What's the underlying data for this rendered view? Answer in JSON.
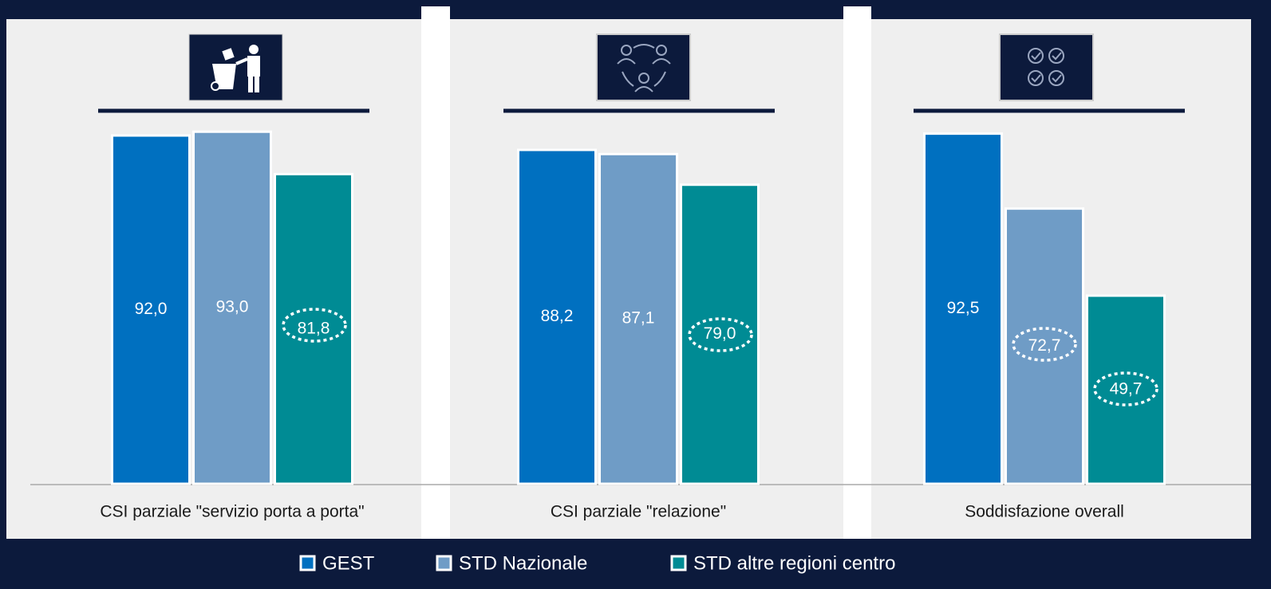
{
  "chart_data": {
    "type": "bar",
    "categories": [
      "CSI parziale \"servizio porta a porta\"",
      "CSI parziale \"relazione\"",
      "Soddisfazione overall"
    ],
    "series": [
      {
        "name": "GEST",
        "color": "#0070c0",
        "values": [
          92.0,
          88.2,
          92.5
        ],
        "value_labels": [
          "92,0",
          "88,2",
          "92,5"
        ]
      },
      {
        "name": "STD Nazionale",
        "color": "#6f9cc6",
        "values": [
          93.0,
          87.1,
          72.7
        ],
        "value_labels": [
          "93,0",
          "87,1",
          "72,7"
        ]
      },
      {
        "name": "STD altre regioni centro",
        "color": "#008b94",
        "values": [
          81.8,
          79.0,
          49.7
        ],
        "value_labels": [
          "81,8",
          "79,0",
          "49,7"
        ]
      }
    ],
    "ylim": [
      0,
      100
    ]
  }
}
